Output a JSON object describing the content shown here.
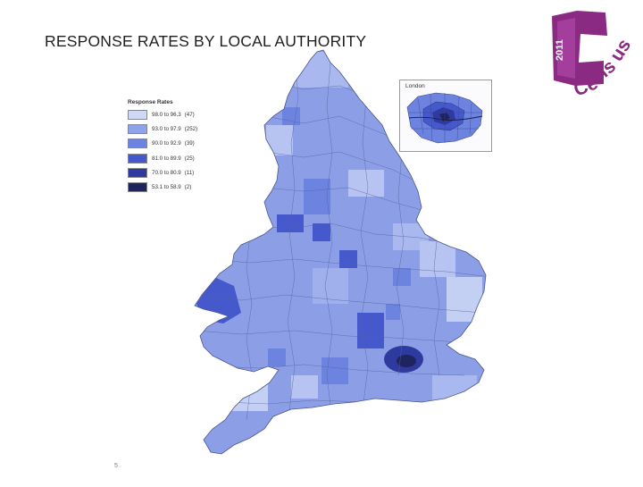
{
  "title": "RESPONSE RATES BY LOCAL AUTHORITY",
  "logo": {
    "year": "2011",
    "word": "Census",
    "color": "#8a2a82"
  },
  "legend": {
    "title": "Response Rates",
    "classes": [
      {
        "range": "98.0 to 96.3",
        "count": "(47)",
        "color": "#ced9f6"
      },
      {
        "range": "93.0 to 97.9",
        "count": "(252)",
        "color": "#8fa3e8"
      },
      {
        "range": "90.0 to 92.9",
        "count": "(39)",
        "color": "#6d83e0"
      },
      {
        "range": "81.0 to 89.9",
        "count": "(25)",
        "color": "#4659cc"
      },
      {
        "range": "70.0 to 80.9",
        "count": "(11)",
        "color": "#2f3a9e"
      },
      {
        "range": "53.1 to 58.9",
        "count": "(2)",
        "color": "#1e2460"
      }
    ]
  },
  "inset": {
    "title": "London"
  },
  "footnote": "5"
}
